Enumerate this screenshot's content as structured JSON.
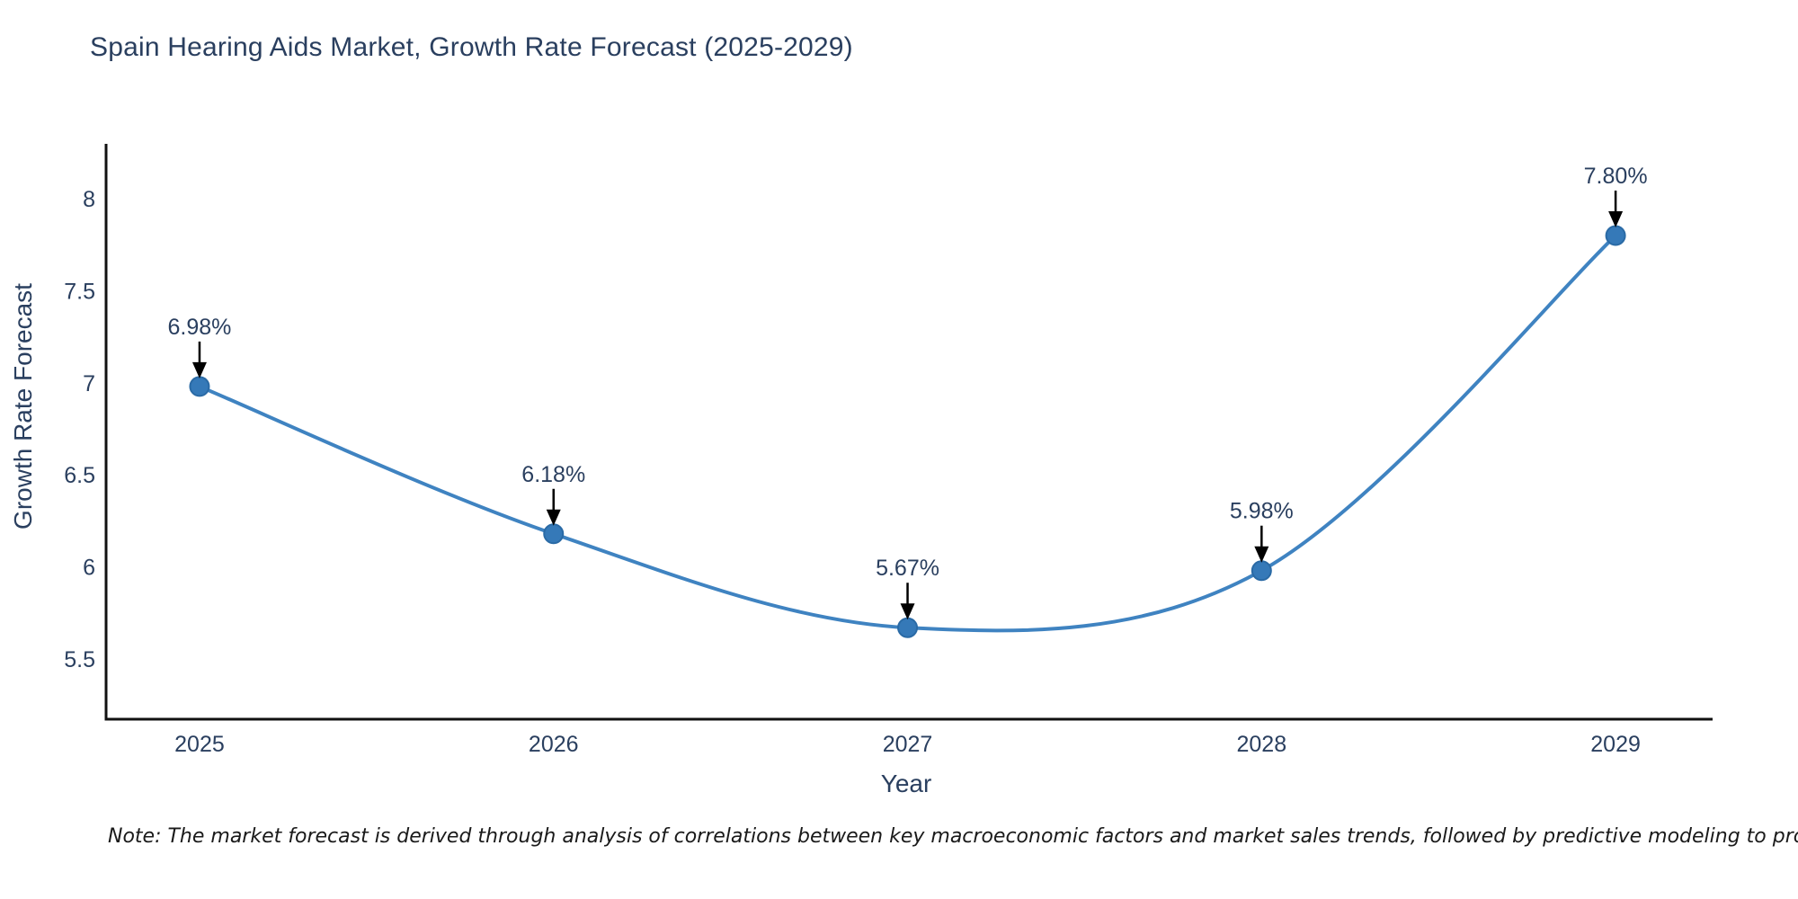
{
  "note": "Note: The market forecast is derived through analysis of correlations between key macroeconomic factors and market sales trends, followed by predictive modeling to project future sales",
  "colors": {
    "line": "#3f83c1",
    "marker_fill": "#3579b8",
    "marker_edge": "#2a6aa5",
    "axis": "#111111",
    "text": "#2a3f5f",
    "arrow": "#000000"
  },
  "chart_data": {
    "type": "line",
    "title": "Spain Hearing Aids Market, Growth Rate Forecast (2025-2029)",
    "xlabel": "Year",
    "ylabel": "Growth Rate Forecast",
    "x": [
      2025,
      2026,
      2027,
      2028,
      2029
    ],
    "values": [
      6.98,
      6.18,
      5.67,
      5.98,
      7.8
    ],
    "point_labels": [
      "6.98%",
      "6.18%",
      "5.67%",
      "5.98%",
      "7.80%"
    ],
    "x_ticks": [
      2025,
      2026,
      2027,
      2028,
      2029
    ],
    "y_ticks": [
      5.5,
      6,
      6.5,
      7,
      7.5,
      8
    ],
    "xlim": [
      2024.736,
      2029.274
    ],
    "ylim": [
      5.173,
      8.298
    ],
    "line_shape": "spline",
    "grid": false,
    "legend": "none"
  }
}
